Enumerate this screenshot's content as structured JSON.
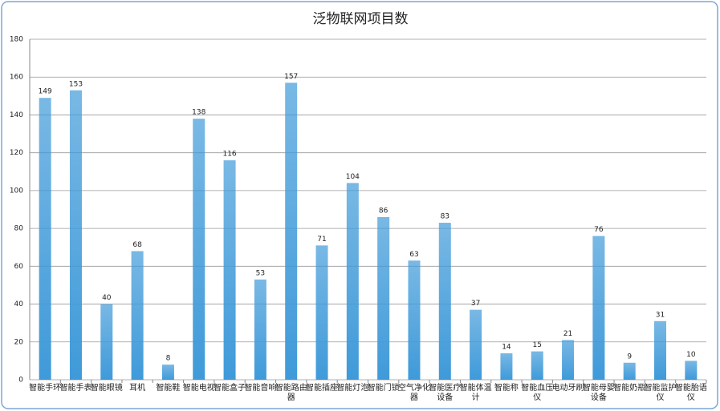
{
  "chart_data": {
    "type": "bar",
    "title": "泛物联网项目数",
    "categories": [
      "智能手环",
      "智能手表",
      "智能眼镜",
      "耳机",
      "智能鞋",
      "智能电视",
      "智能盒子",
      "智能音响",
      "智能路由器",
      "智能插座",
      "智能灯泡",
      "智能门锁",
      "空气净化器",
      "智能医疗设备",
      "智能体温计",
      "智能称",
      "智能血压仪",
      "电动牙刷",
      "智能母婴设备",
      "智能奶瓶",
      "智能监护仪",
      "智能胎语仪"
    ],
    "values": [
      149,
      153,
      40,
      68,
      8,
      138,
      116,
      53,
      157,
      71,
      104,
      86,
      63,
      83,
      37,
      14,
      15,
      21,
      76,
      9,
      31,
      10
    ],
    "color": "#3f9ad9",
    "ylim": [
      0,
      180
    ],
    "yticks": [
      0,
      20,
      40,
      60,
      80,
      100,
      120,
      140,
      160,
      180
    ],
    "grid": true
  }
}
